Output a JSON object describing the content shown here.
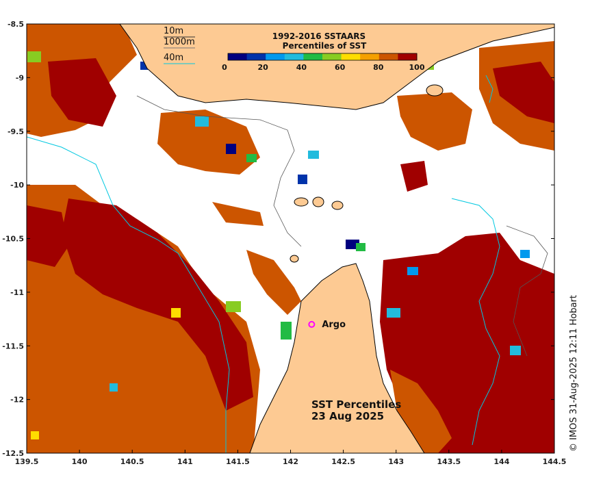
{
  "map": {
    "title_line1": "SST Percentiles",
    "title_line2": "23 Aug 2025",
    "credit": "© IMOS 31-Aug-2025 12:11 Hobart",
    "argo_label": "Argo",
    "argo_position": {
      "lon": 142.2,
      "lat": -11.3
    },
    "lon_range": [
      139.5,
      144.5
    ],
    "lat_range": [
      -12.5,
      -8.5
    ],
    "x_ticks": [
      "139.5",
      "140",
      "140.5",
      "141",
      "141.5",
      "142",
      "142.5",
      "143",
      "143.5",
      "144",
      "144.5"
    ],
    "y_ticks": [
      "-8.5",
      "-9",
      "-9.5",
      "-10",
      "-10.5",
      "-11",
      "-11.5",
      "-12",
      "-12.5"
    ],
    "contour_key": [
      "10m",
      "1000m",
      "40m"
    ],
    "contour_colors": {
      "10m": "#333333",
      "1000m": "#555555",
      "40m": "#00c8e0"
    },
    "land_color": "#fdca93",
    "colorbar": {
      "title_line1": "1992-2016 SSTAARS",
      "title_line2": "Percentiles of SST",
      "tick_labels": [
        "0",
        "20",
        "40",
        "60",
        "80",
        "100"
      ],
      "colors": [
        "#00007f",
        "#0033aa",
        "#0099ee",
        "#22bbdd",
        "#22bb44",
        "#88cc22",
        "#ffdd00",
        "#f5a000",
        "#cc5500",
        "#a00000"
      ]
    }
  }
}
